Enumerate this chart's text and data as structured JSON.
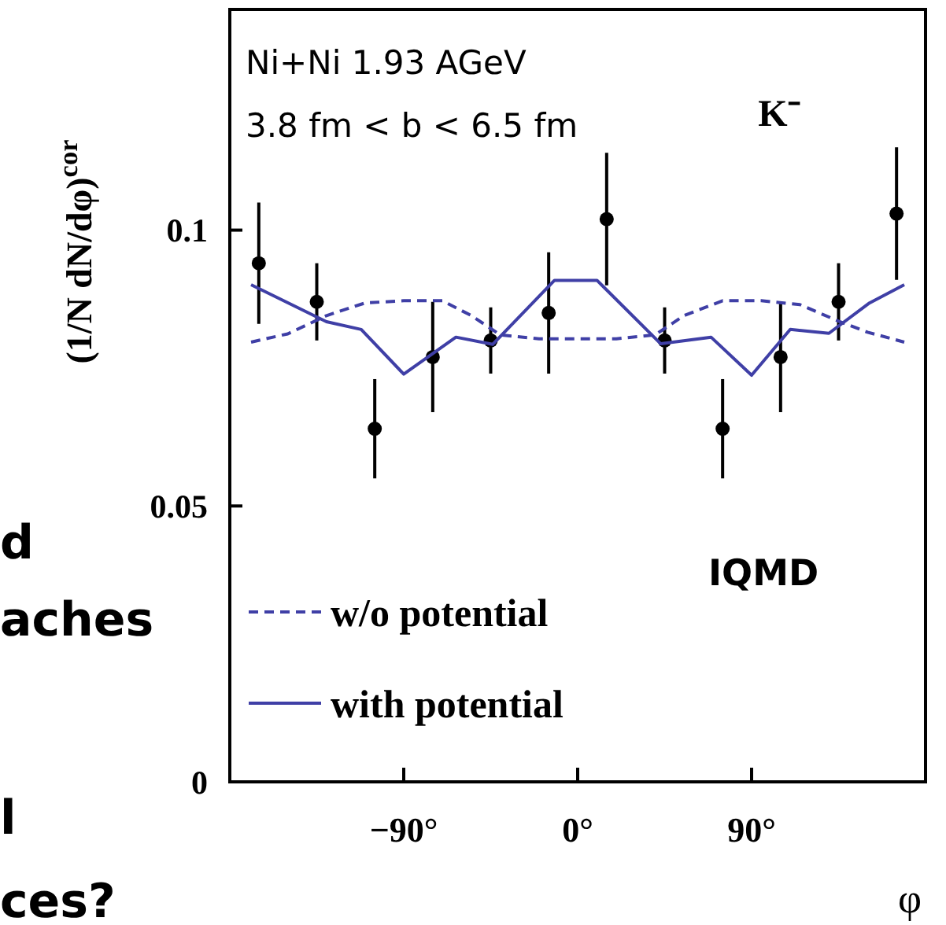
{
  "chart_data": {
    "type": "scatter",
    "ylabel": "(1/N dN/dφ)$^{cor}$",
    "xlabel": "φ",
    "xlim": [
      -180,
      180
    ],
    "ylim": [
      0,
      0.14
    ],
    "xticks": [
      {
        "value": -90,
        "label": "−90°"
      },
      {
        "value": 0,
        "label": "0°"
      },
      {
        "value": 90,
        "label": "90°"
      }
    ],
    "yticks": [
      0,
      0.05,
      {
        "value": 0.1,
        "label": "0.1"
      }
    ],
    "grid": false,
    "legend": "bottom left",
    "series": [
      {
        "color": "#000000",
        "marker": "circle",
        "x": [
          -165,
          -135,
          -105,
          -75,
          -45,
          -15,
          15,
          45,
          75,
          105,
          135,
          165
        ],
        "values": [
          0.094,
          0.087,
          0.064,
          0.077,
          0.08,
          0.085,
          0.102,
          0.08,
          0.064,
          0.077,
          0.087,
          0.103
        ],
        "errors": [
          0.011,
          0.007,
          0.009,
          0.01,
          0.006,
          0.011,
          0.012,
          0.006,
          0.009,
          0.01,
          0.007,
          0.012
        ]
      },
      {
        "type": "line",
        "name": "w/o potential",
        "color": "#3f3fa6",
        "line_style": "dashed",
        "marker": "none",
        "x": [
          -169,
          -150,
          -130,
          -110,
          -90,
          -70,
          -55,
          -40,
          -20,
          0,
          20,
          40,
          55,
          75,
          95,
          115,
          135,
          150,
          169
        ],
        "values": [
          0.0797,
          0.0812,
          0.0845,
          0.0868,
          0.0872,
          0.0872,
          0.0845,
          0.081,
          0.0803,
          0.0803,
          0.0803,
          0.081,
          0.0845,
          0.0872,
          0.0872,
          0.0865,
          0.0835,
          0.0815,
          0.0797
        ]
      },
      {
        "type": "line",
        "name": "with potential",
        "color": "#3f3fa6",
        "line_style": "solid",
        "marker": "none",
        "x": [
          -169,
          -130,
          -112,
          -90,
          -63,
          -44,
          -12,
          10,
          43,
          69,
          90,
          110,
          130,
          151,
          169
        ],
        "values": [
          0.0901,
          0.0834,
          0.082,
          0.0739,
          0.0806,
          0.0793,
          0.0909,
          0.0909,
          0.0794,
          0.0806,
          0.0737,
          0.082,
          0.0813,
          0.0868,
          0.0901
        ]
      }
    ],
    "annotations": [
      "Ni+Ni 1.93 AGeV",
      "3.8 fm < b < 6.5 fm",
      "K⁻",
      "IQMD",
      "d",
      "aches",
      "l",
      "ces?"
    ]
  }
}
